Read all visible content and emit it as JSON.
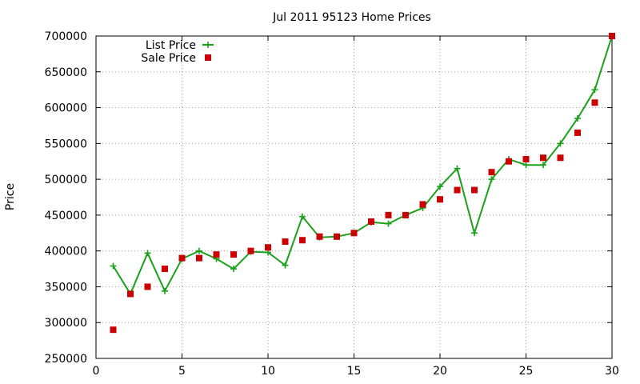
{
  "chart_data": {
    "type": "line",
    "title": "Jul 2011 95123 Home Prices",
    "xlabel": "",
    "ylabel": "Price",
    "xlim": [
      0,
      30
    ],
    "ylim": [
      250000,
      700000
    ],
    "xticks": [
      0,
      5,
      10,
      15,
      20,
      25,
      30
    ],
    "yticks": [
      250000,
      300000,
      350000,
      400000,
      450000,
      500000,
      550000,
      600000,
      650000,
      700000
    ],
    "grid": true,
    "legend": "top-left",
    "colors": {
      "list": "#1aa01a",
      "sale": "#cc0000"
    },
    "series": [
      {
        "name": "List Price",
        "style": "line-with-plus-markers",
        "x": [
          1,
          2,
          3,
          4,
          5,
          6,
          7,
          8,
          9,
          10,
          11,
          12,
          13,
          14,
          15,
          16,
          17,
          18,
          19,
          20,
          21,
          22,
          23,
          24,
          25,
          26,
          27,
          28,
          29,
          30
        ],
        "y": [
          379000,
          340000,
          397000,
          344000,
          389000,
          400000,
          389000,
          375000,
          399000,
          398000,
          380000,
          448000,
          419000,
          420000,
          425000,
          440000,
          438000,
          450000,
          460000,
          490000,
          515000,
          425000,
          500000,
          528000,
          520000,
          520000,
          550000,
          585000,
          625000,
          700000
        ]
      },
      {
        "name": "Sale Price",
        "style": "square-markers",
        "x": [
          1,
          2,
          3,
          4,
          5,
          6,
          7,
          8,
          9,
          10,
          11,
          12,
          13,
          14,
          15,
          16,
          17,
          18,
          19,
          20,
          21,
          22,
          23,
          24,
          25,
          26,
          27,
          28,
          29,
          30
        ],
        "y": [
          290000,
          340000,
          350000,
          375000,
          390000,
          390000,
          395000,
          395000,
          400000,
          405000,
          413000,
          415000,
          420000,
          420000,
          425000,
          441000,
          450000,
          450000,
          465000,
          472000,
          485000,
          485000,
          510000,
          525000,
          528000,
          530000,
          530000,
          565000,
          607000,
          700000
        ]
      }
    ]
  }
}
